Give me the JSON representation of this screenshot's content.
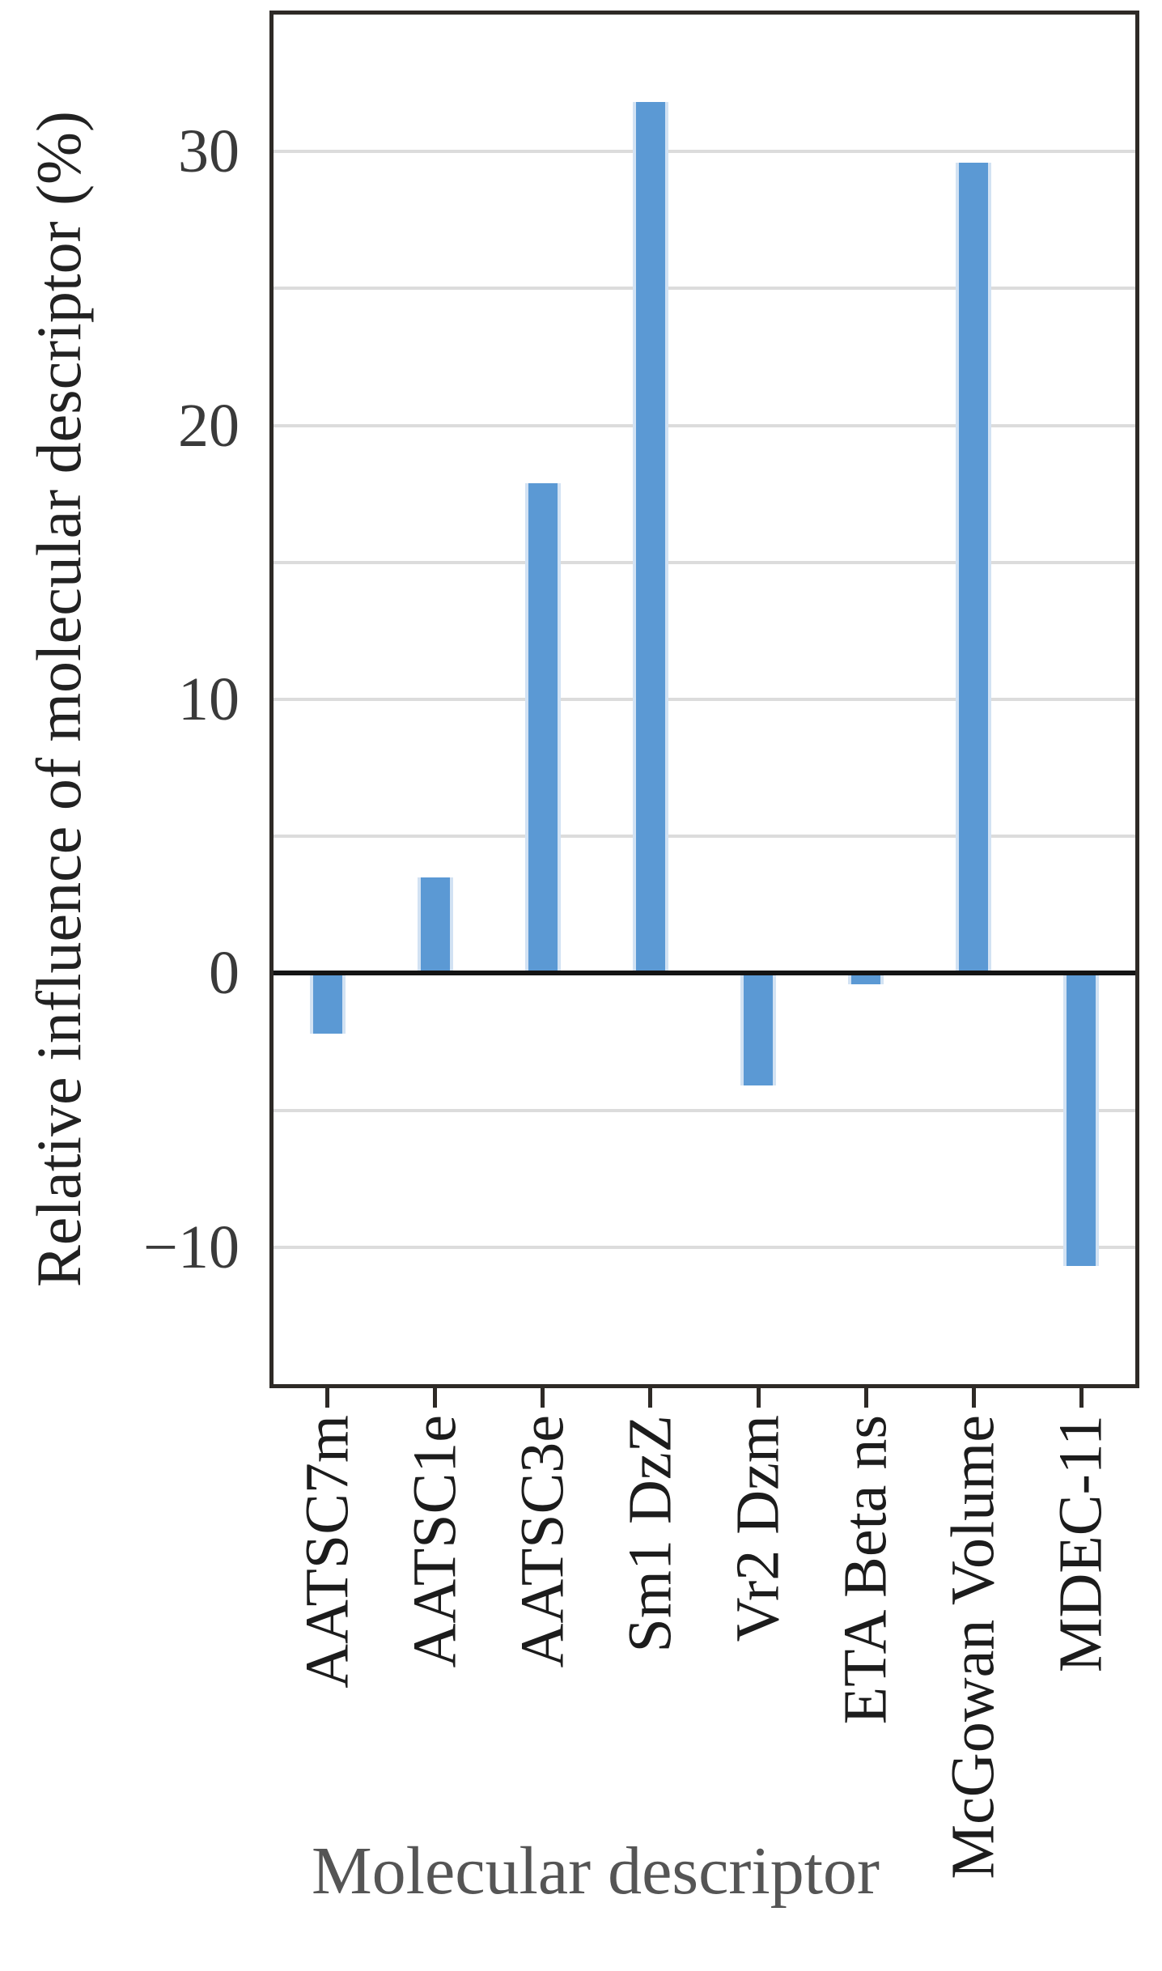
{
  "figure": {
    "background": "#ffffff"
  },
  "chart_data": {
    "type": "bar",
    "title": "",
    "xlabel": "Molecular descriptor",
    "ylabel": "Relative influence of molecular descriptor (%)",
    "categories": [
      "AATSC7m",
      "AATSC1e",
      "AATSC3e",
      "Sm1 DzZ",
      "Vr2 Dzm",
      "ETA Beta ns",
      "McGowan Volume",
      "MDEC-11"
    ],
    "values": [
      -2.2,
      3.5,
      17.9,
      31.8,
      -4.1,
      -0.4,
      29.6,
      -10.7
    ],
    "ylim": [
      -15,
      35
    ],
    "yticks": [
      {
        "value": 30,
        "label": "30"
      },
      {
        "value": 20,
        "label": "20"
      },
      {
        "value": 10,
        "label": "10"
      },
      {
        "value": 0,
        "label": "0"
      },
      {
        "value": -10,
        "label": "−10"
      }
    ],
    "gridline_values": [
      30,
      25,
      20,
      15,
      10,
      5,
      -5,
      -10
    ],
    "grid": "horizontal",
    "legend_position": "none",
    "bar_color": "#5b99d4",
    "bar_edge_color": "#d2e2f3",
    "grid_color": "#dcdcdc",
    "spine_color": "#2e2a26",
    "zero_line_color": "#141414",
    "ytick_label_color": "#3a3a3a",
    "xtick_label_color": "#1c1c1c",
    "xlabel_color": "#555555",
    "ylabel_color": "#222222"
  }
}
